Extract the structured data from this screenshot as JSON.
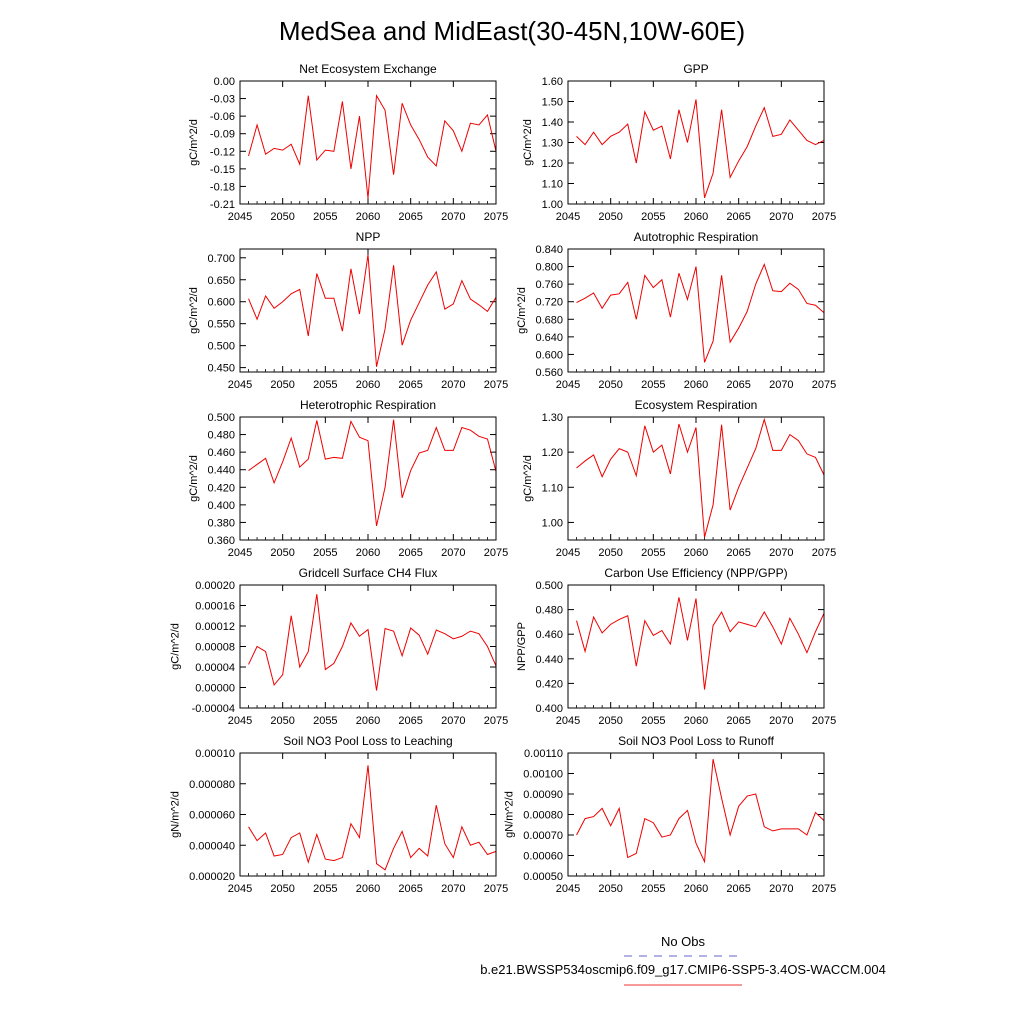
{
  "title": "MedSea and MidEast(30-45N,10W-60E)",
  "legend": {
    "entries": [
      {
        "label": "No Obs",
        "color": "#6666cc",
        "style": "dashed"
      },
      {
        "label": "b.e21.BWSSP534oscmip6.f09_g17.CMIP6-SSP5-3.4OS-WACCM.004",
        "color": "#ee3333",
        "style": "solid"
      }
    ]
  },
  "series_color": "#ee0000",
  "chart_data": [
    {
      "type": "line",
      "title": "Net Ecosystem Exchange",
      "ylabel": "gC/m^2/d",
      "xlim": [
        2045,
        2075
      ],
      "ylim": [
        -0.21,
        0.0
      ],
      "x_ticks": [
        "2045",
        "2050",
        "2055",
        "2060",
        "2065",
        "2070",
        "2075"
      ],
      "y_ticks": [
        "0.00",
        "-0.03",
        "-0.06",
        "-0.09",
        "-0.12",
        "-0.15",
        "-0.18",
        "-0.21"
      ],
      "x": [
        2046,
        2047,
        2048,
        2049,
        2050,
        2051,
        2052,
        2053,
        2054,
        2055,
        2056,
        2057,
        2058,
        2059,
        2060,
        2061,
        2062,
        2063,
        2064,
        2065,
        2066,
        2067,
        2068,
        2069,
        2070,
        2071,
        2072,
        2073,
        2074,
        2075
      ],
      "values": [
        -0.128,
        -0.075,
        -0.125,
        -0.115,
        -0.118,
        -0.108,
        -0.142,
        -0.025,
        -0.135,
        -0.118,
        -0.12,
        -0.035,
        -0.15,
        -0.06,
        -0.2,
        -0.025,
        -0.05,
        -0.16,
        -0.038,
        -0.075,
        -0.1,
        -0.13,
        -0.145,
        -0.068,
        -0.085,
        -0.12,
        -0.072,
        -0.075,
        -0.058,
        -0.12
      ]
    },
    {
      "type": "line",
      "title": "GPP",
      "ylabel": "gC/m^2/d",
      "xlim": [
        2045,
        2075
      ],
      "ylim": [
        1.0,
        1.6
      ],
      "x_ticks": [
        "2045",
        "2050",
        "2055",
        "2060",
        "2065",
        "2070",
        "2075"
      ],
      "y_ticks": [
        "1.60",
        "1.50",
        "1.40",
        "1.30",
        "1.20",
        "1.10",
        "1.00"
      ],
      "x": [
        2046,
        2047,
        2048,
        2049,
        2050,
        2051,
        2052,
        2053,
        2054,
        2055,
        2056,
        2057,
        2058,
        2059,
        2060,
        2061,
        2062,
        2063,
        2064,
        2065,
        2066,
        2067,
        2068,
        2069,
        2070,
        2071,
        2072,
        2073,
        2074,
        2075
      ],
      "values": [
        1.33,
        1.29,
        1.35,
        1.29,
        1.33,
        1.35,
        1.39,
        1.2,
        1.45,
        1.36,
        1.38,
        1.22,
        1.46,
        1.3,
        1.51,
        1.03,
        1.15,
        1.46,
        1.13,
        1.21,
        1.28,
        1.38,
        1.47,
        1.33,
        1.34,
        1.41,
        1.36,
        1.31,
        1.29,
        1.31
      ]
    },
    {
      "type": "line",
      "title": "NPP",
      "ylabel": "gC/m^2/d",
      "xlim": [
        2045,
        2075
      ],
      "ylim": [
        0.44,
        0.72
      ],
      "x_ticks": [
        "2045",
        "2050",
        "2055",
        "2060",
        "2065",
        "2070",
        "2075"
      ],
      "y_ticks": [
        "0.700",
        "0.650",
        "0.600",
        "0.550",
        "0.500",
        "0.450"
      ],
      "x": [
        2046,
        2047,
        2048,
        2049,
        2050,
        2051,
        2052,
        2053,
        2054,
        2055,
        2056,
        2057,
        2058,
        2059,
        2060,
        2061,
        2062,
        2063,
        2064,
        2065,
        2066,
        2067,
        2068,
        2069,
        2070,
        2071,
        2072,
        2073,
        2074,
        2075
      ],
      "values": [
        0.607,
        0.56,
        0.613,
        0.585,
        0.6,
        0.618,
        0.628,
        0.522,
        0.664,
        0.608,
        0.608,
        0.533,
        0.675,
        0.572,
        0.707,
        0.452,
        0.538,
        0.683,
        0.501,
        0.558,
        0.598,
        0.638,
        0.668,
        0.583,
        0.595,
        0.648,
        0.606,
        0.593,
        0.578,
        0.61
      ]
    },
    {
      "type": "line",
      "title": "Autotrophic Respiration",
      "ylabel": "gC/m^2/d",
      "xlim": [
        2045,
        2075
      ],
      "ylim": [
        0.56,
        0.84
      ],
      "x_ticks": [
        "2045",
        "2050",
        "2055",
        "2060",
        "2065",
        "2070",
        "2075"
      ],
      "y_ticks": [
        "0.840",
        "0.800",
        "0.760",
        "0.720",
        "0.680",
        "0.640",
        "0.600",
        "0.560"
      ],
      "x": [
        2046,
        2047,
        2048,
        2049,
        2050,
        2051,
        2052,
        2053,
        2054,
        2055,
        2056,
        2057,
        2058,
        2059,
        2060,
        2061,
        2062,
        2063,
        2064,
        2065,
        2066,
        2067,
        2068,
        2069,
        2070,
        2071,
        2072,
        2073,
        2074,
        2075
      ],
      "values": [
        0.718,
        0.728,
        0.74,
        0.705,
        0.735,
        0.738,
        0.764,
        0.68,
        0.78,
        0.752,
        0.77,
        0.685,
        0.785,
        0.725,
        0.8,
        0.582,
        0.63,
        0.78,
        0.628,
        0.66,
        0.698,
        0.76,
        0.805,
        0.745,
        0.743,
        0.762,
        0.748,
        0.716,
        0.712,
        0.695
      ]
    },
    {
      "type": "line",
      "title": "Heterotrophic Respiration",
      "ylabel": "gC/m^2/d",
      "xlim": [
        2045,
        2075
      ],
      "ylim": [
        0.36,
        0.5
      ],
      "x_ticks": [
        "2045",
        "2050",
        "2055",
        "2060",
        "2065",
        "2070",
        "2075"
      ],
      "y_ticks": [
        "0.500",
        "0.480",
        "0.460",
        "0.440",
        "0.420",
        "0.400",
        "0.380",
        "0.360"
      ],
      "x": [
        2046,
        2047,
        2048,
        2049,
        2050,
        2051,
        2052,
        2053,
        2054,
        2055,
        2056,
        2057,
        2058,
        2059,
        2060,
        2061,
        2062,
        2063,
        2064,
        2065,
        2066,
        2067,
        2068,
        2069,
        2070,
        2071,
        2072,
        2073,
        2074,
        2075
      ],
      "values": [
        0.439,
        0.446,
        0.453,
        0.425,
        0.449,
        0.476,
        0.443,
        0.452,
        0.496,
        0.452,
        0.454,
        0.453,
        0.495,
        0.477,
        0.473,
        0.376,
        0.42,
        0.497,
        0.408,
        0.439,
        0.459,
        0.462,
        0.488,
        0.462,
        0.462,
        0.488,
        0.485,
        0.478,
        0.475,
        0.438
      ]
    },
    {
      "type": "line",
      "title": "Ecosystem Respiration",
      "ylabel": "gC/m^2/d",
      "xlim": [
        2045,
        2075
      ],
      "ylim": [
        0.95,
        1.3
      ],
      "x_ticks": [
        "2045",
        "2050",
        "2055",
        "2060",
        "2065",
        "2070",
        "2075"
      ],
      "y_ticks": [
        "1.30",
        "1.20",
        "1.10",
        "1.00"
      ],
      "x": [
        2046,
        2047,
        2048,
        2049,
        2050,
        2051,
        2052,
        2053,
        2054,
        2055,
        2056,
        2057,
        2058,
        2059,
        2060,
        2061,
        2062,
        2063,
        2064,
        2065,
        2066,
        2067,
        2068,
        2069,
        2070,
        2071,
        2072,
        2073,
        2074,
        2075
      ],
      "values": [
        1.155,
        1.175,
        1.192,
        1.13,
        1.18,
        1.21,
        1.2,
        1.133,
        1.275,
        1.2,
        1.22,
        1.138,
        1.28,
        1.2,
        1.27,
        0.958,
        1.05,
        1.278,
        1.035,
        1.1,
        1.155,
        1.21,
        1.293,
        1.205,
        1.205,
        1.25,
        1.233,
        1.195,
        1.185,
        1.135
      ]
    },
    {
      "type": "line",
      "title": "Gridcell Surface CH4 Flux",
      "ylabel": "gC/m^2/d",
      "xlim": [
        2045,
        2075
      ],
      "ylim": [
        -4e-05,
        0.0002
      ],
      "x_ticks": [
        "2045",
        "2050",
        "2055",
        "2060",
        "2065",
        "2070",
        "2075"
      ],
      "y_ticks": [
        "0.00020",
        "0.00016",
        "0.00012",
        "0.00008",
        "0.00004",
        "0.00000",
        "-0.00004"
      ],
      "x": [
        2046,
        2047,
        2048,
        2049,
        2050,
        2051,
        2052,
        2053,
        2054,
        2055,
        2056,
        2057,
        2058,
        2059,
        2060,
        2061,
        2062,
        2063,
        2064,
        2065,
        2066,
        2067,
        2068,
        2069,
        2070,
        2071,
        2072,
        2073,
        2074,
        2075
      ],
      "values": [
        4.5e-05,
        8e-05,
        7e-05,
        5e-06,
        2.5e-05,
        0.00014,
        4e-05,
        7e-05,
        0.000182,
        3.5e-05,
        4.7e-05,
        8e-05,
        0.000126,
        0.0001,
        0.000113,
        -6e-06,
        0.000115,
        0.00011,
        6.2e-05,
        0.000116,
        0.000102,
        6.5e-05,
        0.000112,
        0.000105,
        9.5e-05,
        0.0001,
        0.00011,
        0.000105,
        8e-05,
        4.2e-05
      ]
    },
    {
      "type": "line",
      "title": "Carbon Use Efficiency (NPP/GPP)",
      "ylabel": "NPP/GPP",
      "xlim": [
        2045,
        2075
      ],
      "ylim": [
        0.4,
        0.5
      ],
      "x_ticks": [
        "2045",
        "2050",
        "2055",
        "2060",
        "2065",
        "2070",
        "2075"
      ],
      "y_ticks": [
        "0.500",
        "0.480",
        "0.460",
        "0.440",
        "0.420",
        "0.400"
      ],
      "x": [
        2046,
        2047,
        2048,
        2049,
        2050,
        2051,
        2052,
        2053,
        2054,
        2055,
        2056,
        2057,
        2058,
        2059,
        2060,
        2061,
        2062,
        2063,
        2064,
        2065,
        2066,
        2067,
        2068,
        2069,
        2070,
        2071,
        2072,
        2073,
        2074,
        2075
      ],
      "values": [
        0.471,
        0.446,
        0.474,
        0.461,
        0.468,
        0.472,
        0.475,
        0.434,
        0.471,
        0.459,
        0.463,
        0.452,
        0.49,
        0.455,
        0.489,
        0.415,
        0.467,
        0.478,
        0.462,
        0.47,
        0.468,
        0.466,
        0.478,
        0.466,
        0.452,
        0.473,
        0.46,
        0.445,
        0.462,
        0.477
      ]
    },
    {
      "type": "line",
      "title": "Soil NO3 Pool Loss to Leaching",
      "ylabel": "gN/m^2/d",
      "xlim": [
        2045,
        2075
      ],
      "ylim": [
        2e-05,
        0.0001
      ],
      "x_ticks": [
        "2045",
        "2050",
        "2055",
        "2060",
        "2065",
        "2070",
        "2075"
      ],
      "y_ticks": [
        "0.00010",
        "0.000080",
        "0.000060",
        "0.000040",
        "0.000020"
      ],
      "x": [
        2046,
        2047,
        2048,
        2049,
        2050,
        2051,
        2052,
        2053,
        2054,
        2055,
        2056,
        2057,
        2058,
        2059,
        2060,
        2061,
        2062,
        2063,
        2064,
        2065,
        2066,
        2067,
        2068,
        2069,
        2070,
        2071,
        2072,
        2073,
        2074,
        2075
      ],
      "values": [
        5.2e-05,
        4.3e-05,
        4.8e-05,
        3.3e-05,
        3.4e-05,
        4.5e-05,
        4.8e-05,
        2.9e-05,
        4.7e-05,
        3.1e-05,
        3e-05,
        3.2e-05,
        5.4e-05,
        4.5e-05,
        9.2e-05,
        2.8e-05,
        2.4e-05,
        3.8e-05,
        4.9e-05,
        3.2e-05,
        3.8e-05,
        3.3e-05,
        6.6e-05,
        4.1e-05,
        3.2e-05,
        5.2e-05,
        4e-05,
        4.2e-05,
        3.4e-05,
        3.6e-05
      ]
    },
    {
      "type": "line",
      "title": "Soil NO3 Pool Loss to Runoff",
      "ylabel": "gN/m^2/d",
      "xlim": [
        2045,
        2075
      ],
      "ylim": [
        0.0005,
        0.0011
      ],
      "x_ticks": [
        "2045",
        "2050",
        "2055",
        "2060",
        "2065",
        "2070",
        "2075"
      ],
      "y_ticks": [
        "0.00110",
        "0.00100",
        "0.00090",
        "0.00080",
        "0.00070",
        "0.00060",
        "0.00050"
      ],
      "x": [
        2046,
        2047,
        2048,
        2049,
        2050,
        2051,
        2052,
        2053,
        2054,
        2055,
        2056,
        2057,
        2058,
        2059,
        2060,
        2061,
        2062,
        2063,
        2064,
        2065,
        2066,
        2067,
        2068,
        2069,
        2070,
        2071,
        2072,
        2073,
        2074,
        2075
      ],
      "values": [
        0.0007,
        0.00078,
        0.00079,
        0.00083,
        0.000745,
        0.00083,
        0.00059,
        0.00061,
        0.00078,
        0.00076,
        0.00069,
        0.0007,
        0.00078,
        0.00082,
        0.00066,
        0.00057,
        0.00107,
        0.00088,
        0.0007,
        0.00084,
        0.00089,
        0.0009,
        0.00074,
        0.00072,
        0.00073,
        0.00073,
        0.00073,
        0.0007,
        0.00081,
        0.00077
      ]
    }
  ]
}
